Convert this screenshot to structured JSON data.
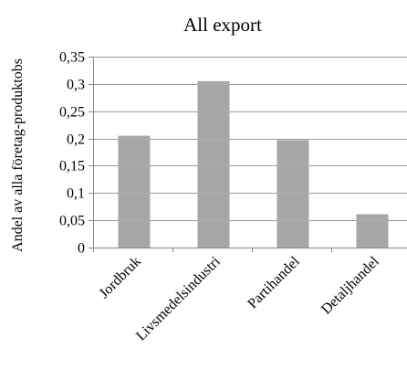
{
  "chart_data": {
    "type": "bar",
    "title": "All export",
    "ylabel": "Andel av alla företag-produktobs",
    "xlabel": "",
    "categories": [
      "Jordbruk",
      "Livsmedelsindustri",
      "Partihandel",
      "Detaljhandel"
    ],
    "values": [
      0.205,
      0.305,
      0.197,
      0.061
    ],
    "ylim": [
      0,
      0.35
    ],
    "yticks": [
      0,
      0.05,
      0.1,
      0.15,
      0.2,
      0.25,
      0.3,
      0.35
    ],
    "ytick_labels": [
      "0",
      "0,05",
      "0,1",
      "0,15",
      "0,2",
      "0,25",
      "0,3",
      "0,35"
    ],
    "grid": true,
    "legend": "none",
    "colors": {
      "bar": "#a6a6a6",
      "grid": "#878787",
      "axis": "#878787"
    }
  }
}
